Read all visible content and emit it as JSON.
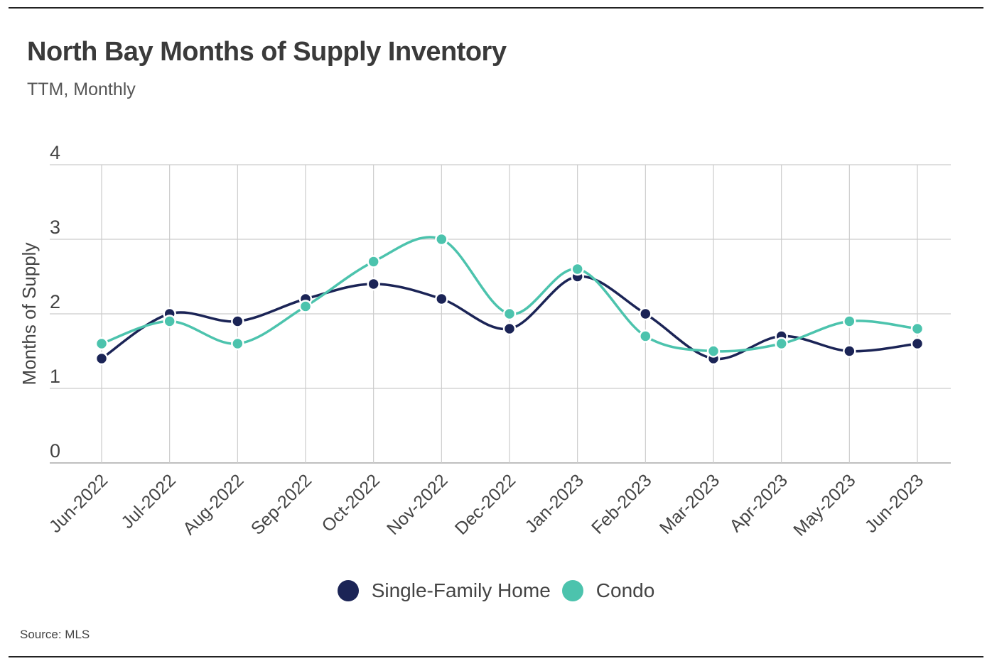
{
  "title": "North Bay Months of Supply Inventory",
  "subtitle": "TTM, Monthly",
  "source": "Source:  MLS",
  "colors": {
    "single_family": "#1b2456",
    "condo": "#4cc3ad",
    "grid": "#cccccc"
  },
  "legend": [
    {
      "label": "Single-Family Home",
      "color": "#1b2456"
    },
    {
      "label": "Condo",
      "color": "#4cc3ad"
    }
  ],
  "chart_data": {
    "type": "line",
    "title": "North Bay Months of Supply Inventory",
    "subtitle": "TTM, Monthly",
    "xlabel": "",
    "ylabel": "Months of Supply",
    "ylim": [
      0,
      4
    ],
    "yticks": [
      0,
      1,
      2,
      3,
      4
    ],
    "grid": true,
    "legend_position": "bottom",
    "categories": [
      "Jun-2022",
      "Jul-2022",
      "Aug-2022",
      "Sep-2022",
      "Oct-2022",
      "Nov-2022",
      "Dec-2022",
      "Jan-2023",
      "Feb-2023",
      "Mar-2023",
      "Apr-2023",
      "May-2023",
      "Jun-2023"
    ],
    "series": [
      {
        "name": "Single-Family Home",
        "color": "#1b2456",
        "values": [
          1.4,
          2.0,
          1.9,
          2.2,
          2.4,
          2.2,
          1.8,
          2.5,
          2.0,
          1.4,
          1.7,
          1.5,
          1.6
        ]
      },
      {
        "name": "Condo",
        "color": "#4cc3ad",
        "values": [
          1.6,
          1.9,
          1.6,
          2.1,
          2.7,
          3.0,
          2.0,
          2.6,
          1.7,
          1.5,
          1.6,
          1.9,
          1.8
        ]
      }
    ]
  }
}
